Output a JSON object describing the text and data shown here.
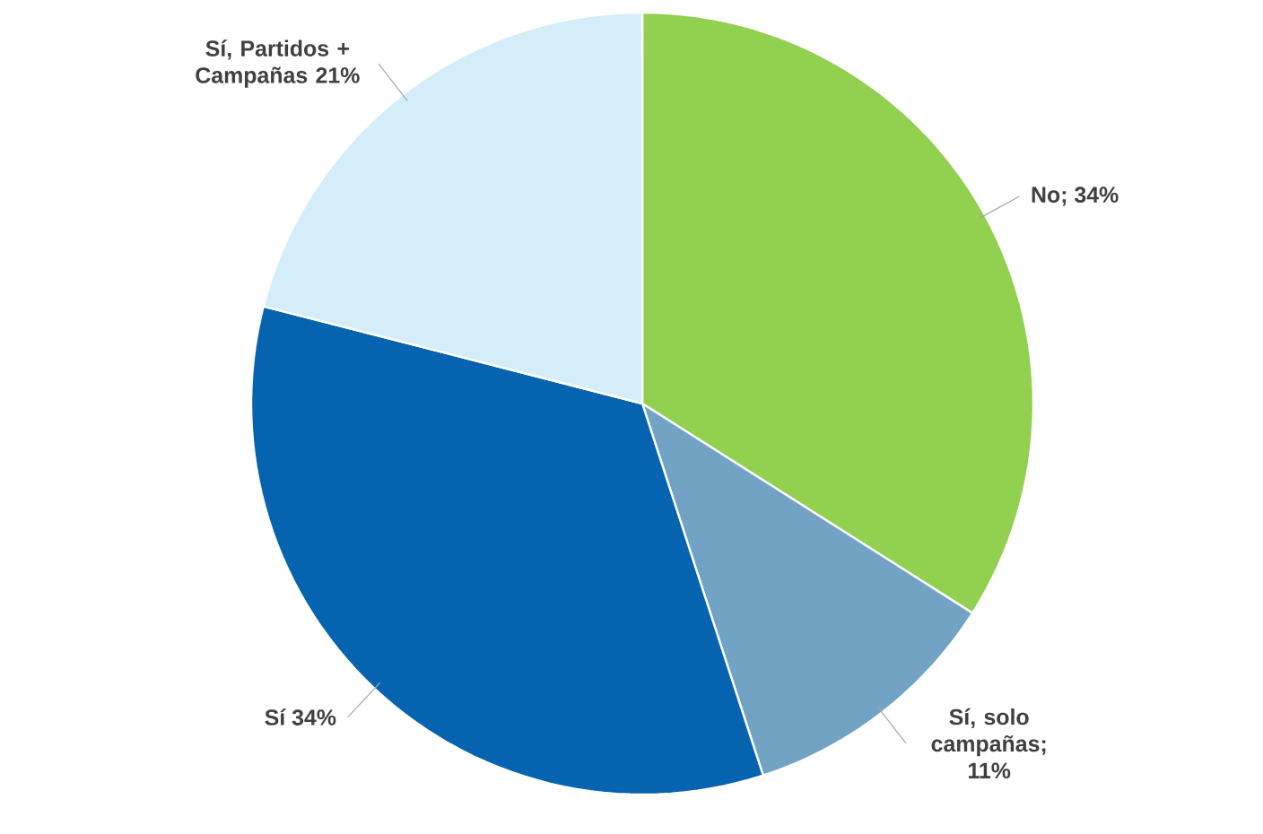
{
  "chart_data": {
    "type": "pie",
    "categories": [
      "No; 34%",
      "Sí, solo campañas; 11%",
      "Sí 34%",
      "Sí, Partidos + Campañas 21%"
    ],
    "values": [
      34,
      11,
      34,
      21
    ],
    "colors": [
      "#92d050",
      "#72a3c4",
      "#0563b0",
      "#d5edf9"
    ]
  }
}
